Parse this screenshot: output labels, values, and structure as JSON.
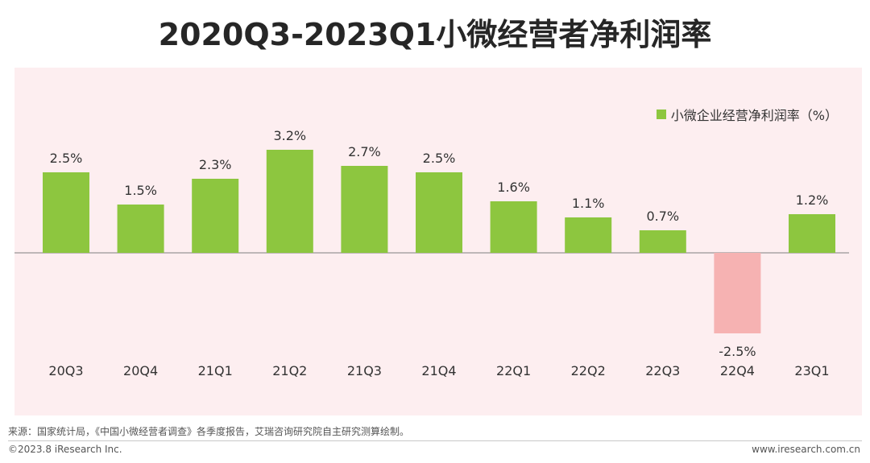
{
  "title": "2020Q3-2023Q1小微经营者净利润率",
  "legend": {
    "label": "小微企业经营净利润率（%）"
  },
  "colors": {
    "positive_bar": "#8dc63f",
    "negative_bar": "#f6b2b2",
    "panel_bg": "#fdeef0",
    "zero_line": "#808080"
  },
  "chart_data": {
    "type": "bar",
    "categories": [
      "20Q3",
      "20Q4",
      "21Q1",
      "21Q2",
      "21Q3",
      "21Q4",
      "22Q1",
      "22Q2",
      "22Q3",
      "22Q4",
      "23Q1"
    ],
    "series": [
      {
        "name": "小微企业经营净利润率（%）",
        "values": [
          2.5,
          1.5,
          2.3,
          3.2,
          2.7,
          2.5,
          1.6,
          1.1,
          0.7,
          -2.5,
          1.2
        ]
      }
    ],
    "data_labels": [
      "2.5%",
      "1.5%",
      "2.3%",
      "3.2%",
      "2.7%",
      "2.5%",
      "1.6%",
      "1.1%",
      "0.7%",
      "-2.5%",
      "1.2%"
    ],
    "title": "2020Q3-2023Q1小微经营者净利润率",
    "xlabel": "",
    "ylabel": "",
    "ylim": [
      -2.5,
      3.2
    ],
    "grid": false,
    "legend_position": "top-right"
  },
  "footer": {
    "source": "来源：国家统计局，《中国小微经营者调查》各季度报告，艾瑞咨询研究院自主研究测算绘制。",
    "copyright": "©2023.8 iResearch Inc.",
    "website": "www.iresearch.com.cn"
  }
}
